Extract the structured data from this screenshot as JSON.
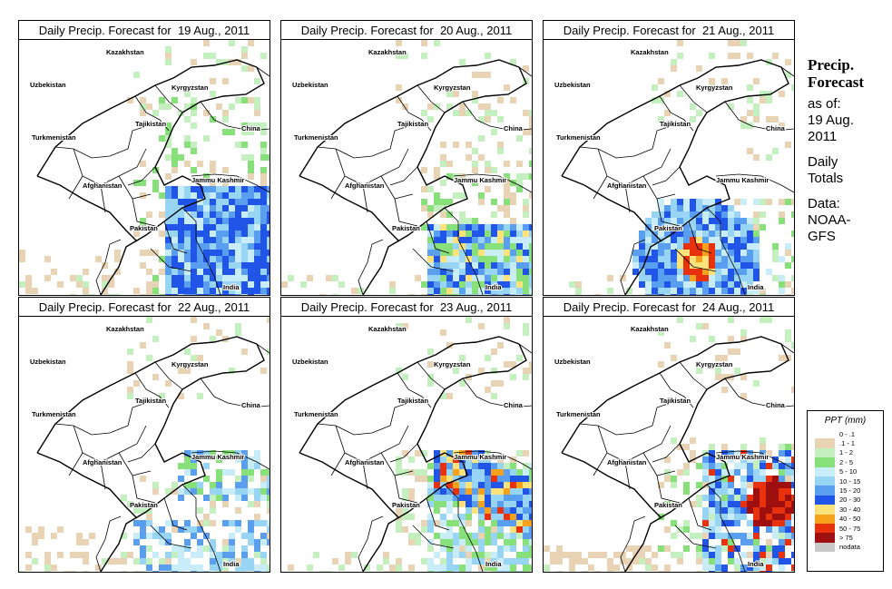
{
  "panels": [
    {
      "title": "Daily Precip. Forecast for  19 Aug., 2011"
    },
    {
      "title": "Daily Precip. Forecast for  20 Aug., 2011"
    },
    {
      "title": "Daily Precip. Forecast for  21 Aug., 2011"
    },
    {
      "title": "Daily Precip. Forecast for  22 Aug., 2011"
    },
    {
      "title": "Daily Precip. Forecast for  23 Aug., 2011"
    },
    {
      "title": "Daily Precip. Forecast for  24 Aug., 2011"
    }
  ],
  "map_labels": {
    "uzbekistan": "Uzbekistan",
    "kazakhstan": "Kazakhstan",
    "kyrgyzstan": "Kyrgyzstan",
    "tajikistan": "Tajikistan",
    "china": "China",
    "turkmenistan": "Turkmenistan",
    "afghanistan": "Afghanistan",
    "jammu_kashmir": "Jammu Kashmir",
    "pakistan": "Pakistan",
    "india": "India"
  },
  "side_panel": {
    "heading_1": "Precip.",
    "heading_2": "Forecast",
    "asof_1": "as of:",
    "asof_2": "19 Aug.",
    "asof_3": "2011",
    "daily_1": "Daily",
    "daily_2": "Totals",
    "data_1": "Data:",
    "data_2": "NOAA-",
    "data_3": "GFS"
  },
  "legend": {
    "title": "PPT (mm)",
    "items": [
      {
        "label": "0 - .1",
        "color": "#ffffff"
      },
      {
        "label": ".1 - 1",
        "color": "#e8d4b4"
      },
      {
        "label": "1 - 2",
        "color": "#c4f0c0"
      },
      {
        "label": "2 - 5",
        "color": "#88e07a"
      },
      {
        "label": "5 - 10",
        "color": "#c8ecf8"
      },
      {
        "label": "10 - 15",
        "color": "#98d4f4"
      },
      {
        "label": "15 - 20",
        "color": "#5a9ef0"
      },
      {
        "label": "20 - 30",
        "color": "#2055e8"
      },
      {
        "label": "30 - 40",
        "color": "#fce27a"
      },
      {
        "label": "40 - 50",
        "color": "#f7a21c"
      },
      {
        "label": "50 - 75",
        "color": "#e8320e"
      },
      {
        "label": "> 75",
        "color": "#9e1010"
      },
      {
        "label": "nodata",
        "color": "#c8c8c8"
      }
    ]
  }
}
